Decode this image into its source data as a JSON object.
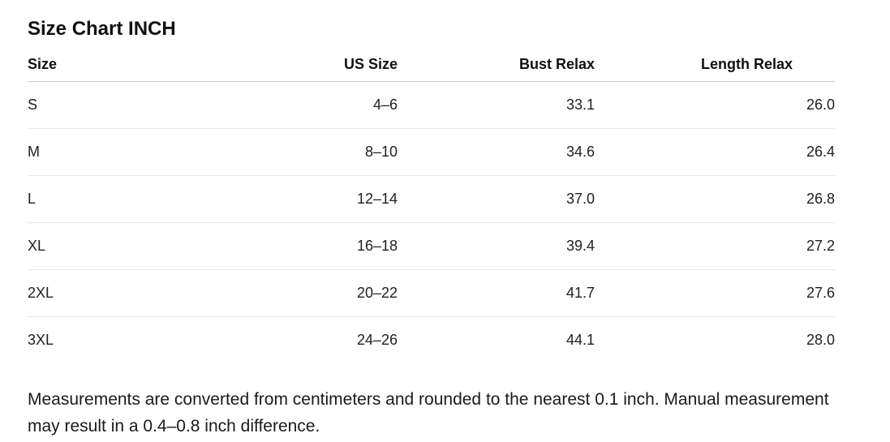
{
  "title": "Size Chart INCH",
  "table": {
    "headers": [
      "Size",
      "US Size",
      "Bust Relax",
      "Length Relax"
    ],
    "rows": [
      [
        "S",
        "4–6",
        "33.1",
        "26.0"
      ],
      [
        "M",
        "8–10",
        "34.6",
        "26.4"
      ],
      [
        "L",
        "12–14",
        "37.0",
        "26.8"
      ],
      [
        "XL",
        "16–18",
        "39.4",
        "27.2"
      ],
      [
        "2XL",
        "20–22",
        "41.7",
        "27.6"
      ],
      [
        "3XL",
        "24–26",
        "44.1",
        "28.0"
      ]
    ]
  },
  "footnote": "Measurements are converted from centimeters and rounded to the nearest 0.1 inch. Manual measurement may result in a 0.4–0.8 inch difference."
}
